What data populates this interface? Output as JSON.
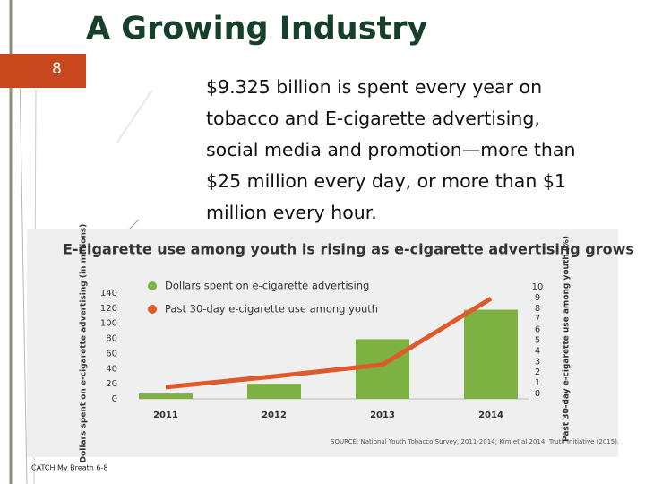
{
  "title": "A Growing Industry",
  "slide_number": "8",
  "body_lines": [
    "$9.325 billion is spent every year on",
    "tobacco and E-cigarette advertising,",
    "social media and promotion—more than",
    "$25 million every day, or more than $1",
    "million every hour."
  ],
  "footer": "CATCH My Breath 6-8",
  "chart_data": {
    "type": "bar",
    "title": "E-cigarette use among youth is rising as e-cigarette advertising grows",
    "source": "SOURCE: National Youth Tobacco Survey, 2011-2014; Kim et al 2014; Truth Initiative (2015).",
    "ylabel": "Dollars spent on e-cigarette advertising (in millions)",
    "y2label": "Past 30-day e-cigarette use among youth (%)",
    "categories": [
      "2011",
      "2012",
      "2013",
      "2014"
    ],
    "series": [
      {
        "name": "Dollars spent on e-cigarette advertising",
        "color": "#7db142",
        "values": [
          7,
          20,
          79,
          118
        ]
      },
      {
        "name": "Past 30-day e-cigarette use among youth",
        "color": "#e0592a",
        "type": "line",
        "axis": "y2",
        "values": [
          0.6,
          1.6,
          2.7,
          8.9
        ]
      }
    ],
    "ylim": [
      0,
      140
    ],
    "yticks": [
      0,
      20,
      40,
      60,
      80,
      100,
      120,
      140
    ],
    "y2lim": [
      0,
      10
    ],
    "y2ticks": [
      0,
      1,
      2,
      3,
      4,
      5,
      6,
      7,
      8,
      9,
      10
    ]
  }
}
